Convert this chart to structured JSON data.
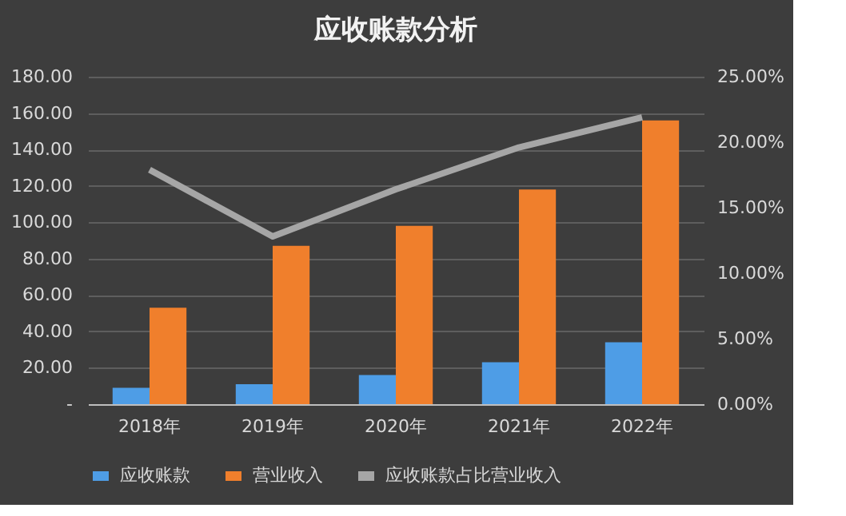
{
  "chart_data": {
    "type": "bar",
    "title": "应收账款分析",
    "categories": [
      "2018年",
      "2019年",
      "2020年",
      "2021年",
      "2022年"
    ],
    "series": [
      {
        "name": "应收账款",
        "color": "#4e9de6",
        "values": [
          9,
          11,
          16,
          23,
          34
        ]
      },
      {
        "name": "营业收入",
        "color": "#f07f2c",
        "values": [
          53,
          87,
          98,
          118,
          156
        ]
      },
      {
        "name": "应收账款占比营业收入",
        "type": "line",
        "axis": "y2",
        "color": "#a6a6a6",
        "values": [
          17.9,
          12.8,
          16.4,
          19.6,
          21.9
        ]
      }
    ],
    "ylim": [
      0,
      180
    ],
    "yticks": [
      {
        "value": 0,
        "label": "-"
      },
      {
        "value": 20,
        "label": "20.00"
      },
      {
        "value": 40,
        "label": "40.00"
      },
      {
        "value": 60,
        "label": "60.00"
      },
      {
        "value": 80,
        "label": "80.00"
      },
      {
        "value": 100,
        "label": "100.00"
      },
      {
        "value": 120,
        "label": "120.00"
      },
      {
        "value": 140,
        "label": "140.00"
      },
      {
        "value": 160,
        "label": "160.00"
      },
      {
        "value": 180,
        "label": "180.00"
      }
    ],
    "y2lim": [
      0,
      25
    ],
    "y2ticks": [
      {
        "value": 0,
        "label": "0.00%"
      },
      {
        "value": 5,
        "label": "5.00%"
      },
      {
        "value": 10,
        "label": "10.00%"
      },
      {
        "value": 15,
        "label": "15.00%"
      },
      {
        "value": 20,
        "label": "20.00%"
      },
      {
        "value": 25,
        "label": "25.00%"
      }
    ],
    "grid": "y",
    "legend": "bottom",
    "marker": "none"
  }
}
